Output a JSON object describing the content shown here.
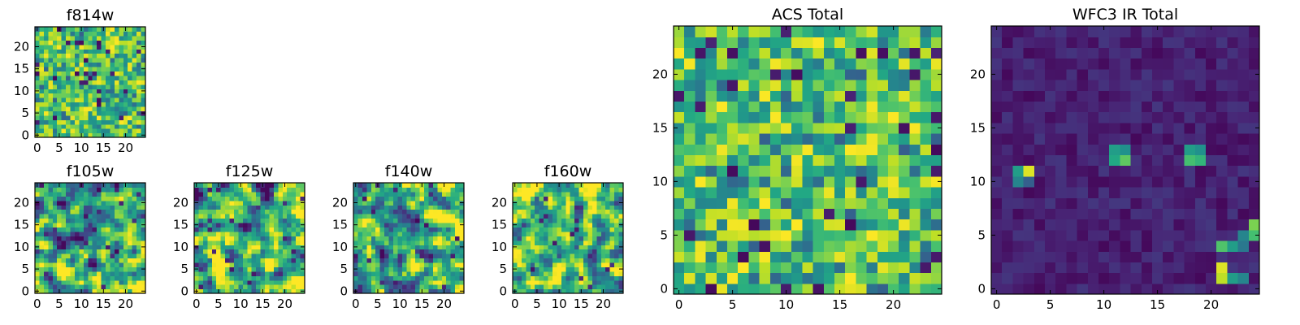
{
  "colormap": "viridis",
  "chart_data": [
    {
      "type": "heatmap",
      "title": "f814w",
      "xticks": [
        0,
        5,
        10,
        15,
        20
      ],
      "yticks": [
        0,
        5,
        10,
        15,
        20
      ],
      "xlim": [
        -0.5,
        24.5
      ],
      "ylim": [
        -0.5,
        24.5
      ],
      "grid_size": [
        25,
        25
      ],
      "texture": "pixel-noise",
      "value_range": [
        0,
        1
      ]
    },
    {
      "type": "heatmap",
      "title": "f105w",
      "xticks": [
        0,
        5,
        10,
        15,
        20
      ],
      "yticks": [
        0,
        5,
        10,
        15,
        20
      ],
      "xlim": [
        -0.5,
        24.5
      ],
      "ylim": [
        -0.5,
        24.5
      ],
      "grid_size": [
        25,
        25
      ],
      "texture": "smooth-noise",
      "value_range": [
        0,
        1
      ]
    },
    {
      "type": "heatmap",
      "title": "f125w",
      "xticks": [
        0,
        5,
        10,
        15,
        20
      ],
      "yticks": [
        0,
        5,
        10,
        15,
        20
      ],
      "xlim": [
        -0.5,
        24.5
      ],
      "ylim": [
        -0.5,
        24.5
      ],
      "grid_size": [
        25,
        25
      ],
      "texture": "smooth-noise",
      "value_range": [
        0,
        1
      ]
    },
    {
      "type": "heatmap",
      "title": "f140w",
      "xticks": [
        0,
        5,
        10,
        15,
        20
      ],
      "yticks": [
        0,
        5,
        10,
        15,
        20
      ],
      "xlim": [
        -0.5,
        24.5
      ],
      "ylim": [
        -0.5,
        24.5
      ],
      "grid_size": [
        25,
        25
      ],
      "texture": "smooth-noise",
      "value_range": [
        0,
        1
      ]
    },
    {
      "type": "heatmap",
      "title": "f160w",
      "xticks": [
        0,
        5,
        10,
        15,
        20
      ],
      "yticks": [
        0,
        5,
        10,
        15,
        20
      ],
      "xlim": [
        -0.5,
        24.5
      ],
      "ylim": [
        -0.5,
        24.5
      ],
      "grid_size": [
        25,
        25
      ],
      "texture": "smooth-noise",
      "value_range": [
        0,
        1
      ]
    },
    {
      "type": "heatmap",
      "title": "ACS Total",
      "xticks": [
        0,
        5,
        10,
        15,
        20
      ],
      "yticks": [
        0,
        5,
        10,
        15,
        20
      ],
      "xlim": [
        -0.5,
        24.5
      ],
      "ylim": [
        -0.5,
        24.5
      ],
      "grid_size": [
        25,
        25
      ],
      "texture": "pixel-noise",
      "value_range": [
        0,
        1
      ]
    },
    {
      "type": "heatmap",
      "title": "WFC3 IR Total",
      "xticks": [
        0,
        5,
        10,
        15,
        20
      ],
      "yticks": [
        0,
        5,
        10,
        15,
        20
      ],
      "xlim": [
        -0.5,
        24.5
      ],
      "ylim": [
        -0.5,
        24.5
      ],
      "grid_size": [
        25,
        25
      ],
      "texture": "dark-background-with-bright-sources",
      "value_range": [
        0,
        1
      ],
      "bright_cells": [
        {
          "x": 2,
          "y": 11,
          "v": 0.55
        },
        {
          "x": 3,
          "y": 11,
          "v": 0.95
        },
        {
          "x": 2,
          "y": 10,
          "v": 0.45
        },
        {
          "x": 3,
          "y": 10,
          "v": 0.3
        },
        {
          "x": 11,
          "y": 12,
          "v": 0.6
        },
        {
          "x": 12,
          "y": 12,
          "v": 0.75
        },
        {
          "x": 11,
          "y": 13,
          "v": 0.55
        },
        {
          "x": 12,
          "y": 13,
          "v": 0.5
        },
        {
          "x": 18,
          "y": 12,
          "v": 0.7
        },
        {
          "x": 19,
          "y": 12,
          "v": 0.65
        },
        {
          "x": 18,
          "y": 13,
          "v": 0.55
        },
        {
          "x": 19,
          "y": 13,
          "v": 0.5
        },
        {
          "x": 24,
          "y": 6,
          "v": 0.8
        },
        {
          "x": 24,
          "y": 5,
          "v": 0.7
        },
        {
          "x": 23,
          "y": 5,
          "v": 0.45
        },
        {
          "x": 21,
          "y": 4,
          "v": 0.72
        },
        {
          "x": 22,
          "y": 4,
          "v": 0.55
        },
        {
          "x": 23,
          "y": 4,
          "v": 0.4
        },
        {
          "x": 21,
          "y": 2,
          "v": 0.95
        },
        {
          "x": 21,
          "y": 1,
          "v": 0.9
        },
        {
          "x": 22,
          "y": 1,
          "v": 0.55
        },
        {
          "x": 23,
          "y": 1,
          "v": 0.45
        }
      ]
    }
  ]
}
